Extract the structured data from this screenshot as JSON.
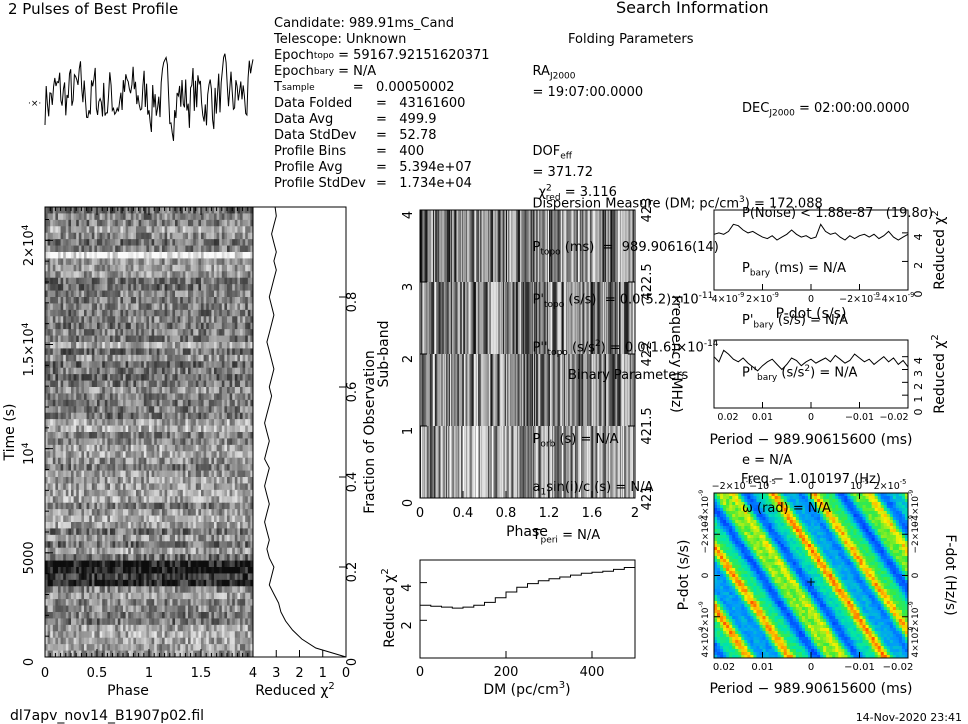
{
  "profile_title": "2 Pulses of Best Profile",
  "search_title": "Search Information",
  "folding_title": "Folding Parameters",
  "binary_title": "Binary Parameters",
  "candidate_info": [
    {
      "key": "Candidate:",
      "val": "989.91ms_Cand"
    },
    {
      "key": "Telescope:",
      "val": "Unknown"
    },
    {
      "key": "Epoch",
      "sub": "topo",
      "val": "= 59167.92151620371"
    },
    {
      "key": "Epoch",
      "sub": "bary",
      "val": "= N/A"
    },
    {
      "key": "T",
      "sub": "sample",
      "val": "=   0.00050002"
    },
    {
      "key": "Data Folded",
      "val": "=   43161600"
    },
    {
      "key": "Data Avg",
      "val": "=   499.9"
    },
    {
      "key": "Data StdDev",
      "val": "=   52.78"
    },
    {
      "key": "Profile Bins",
      "val": "=   400"
    },
    {
      "key": "Profile Avg",
      "val": "=   5.394e+07"
    },
    {
      "key": "Profile StdDev",
      "val": "=   1.734e+04"
    }
  ],
  "search_info": {
    "ra_label": "RA",
    "ra_sub": "J2000",
    "ra_val": "= 19:07:00.0000",
    "dec_label": "DEC",
    "dec_sub": "J2000",
    "dec_val": "= 02:00:00.0000",
    "dof": "DOF",
    "dof_sub": "eff",
    "dof_val": "= 371.72",
    "chi": "χ",
    "chi_sup": "2",
    "chi_sub": "red",
    "chi_val": "= 3.116",
    "pnoise": "P(Noise) < 1.88e-87   (19.8σ)",
    "dm": "Dispersion Measure (DM; pc/cm",
    "dm_sup": "3",
    "dm_val": ") = 172.088",
    "ptopo": "P",
    "ptopo_sub": "topo",
    "ptopo_val": "(ms)  =  989.90616(14)",
    "pbary": "P",
    "pbary_sub": "bary",
    "pbary_val": "(ms) = N/A",
    "pdtopo": "P'",
    "pdtopo_sub": "topo",
    "pdtopo_val": "(s/s)  = 0.0(5.2)×10",
    "pdtopo_exp": "-11",
    "pdbary": "P'",
    "pdbary_sub": "bary",
    "pdbary_val": "(s/s) = N/A",
    "pddtopo": "P''",
    "pddtopo_sub": "topo",
    "pddtopo_val": "(s/s",
    "pddtopo_sup": "2",
    "pddtopo_val2": ") = 0.0(1.6)×10",
    "pddtopo_exp": "-14",
    "pddbary": "P''",
    "pddbary_sub": "bary",
    "pddbary_val": "(s/s",
    "pddbary_sup": "2",
    "pddbary_val2": ") = N/A",
    "porb": "P",
    "porb_sub": "orb",
    "porb_val": "(s) = N/A",
    "e_val": "e = N/A",
    "asini": "a",
    "asini_sub": "1",
    "asini_val": "sin(i)/c (s) = N/A",
    "omega_val": "ω (rad) = N/A",
    "tperi": "T",
    "tperi_sub": "peri",
    "tperi_val": "= N/A"
  },
  "footer": {
    "filename": "dl7apv_nov14_B1907p02.fil",
    "timestamp": "14-Nov-2020 23:41"
  },
  "panel_labels": {
    "time_phase_x": "Phase",
    "time_y": "Time (s)",
    "chi_x": "Reduced χ",
    "chi_x_sup": "2",
    "frac_obs": "Fraction of Observation",
    "subband_x": "Phase",
    "subband_y": "Sub-band",
    "freq_y": "Frequency (MHz)",
    "dm_x": "DM (pc/cm",
    "dm_x_sup": "3",
    "dm_x_end": ")",
    "dm_y": "Reduced χ",
    "dm_y_sup": "2",
    "pdot_x": "P-dot (s/s)",
    "pdot_y": "Reduced χ",
    "pdot_y_sup": "2",
    "period_x": "Period − 989.90615600 (ms)",
    "period_y": "Reduced χ",
    "period_y_sup": "2",
    "map_top": "Freq − 1.010197 (Hz)",
    "map_bottom": "Period − 989.90615600 (ms)",
    "map_left": "P-dot (s/s)",
    "map_right": "F-dot (Hz/s)"
  },
  "chart_data": [
    {
      "id": "profile",
      "type": "line",
      "title": "2 Pulses of Best Profile",
      "note": "noise-like pulse profile, two pulses over phase 0–2, no axes labels shown"
    },
    {
      "id": "time_phase",
      "type": "heatmap",
      "colormap": "grayscale",
      "xlabel": "Phase",
      "ylabel": "Time (s)",
      "x_ticks": [
        "0",
        "0.5",
        "1",
        "1.5"
      ],
      "y_ticks": [
        "0",
        "5000",
        "10^4",
        "1.5×10^4",
        "2×10^4"
      ],
      "xlim": [
        0,
        2
      ],
      "ylim": [
        0,
        21600
      ],
      "dark_bands_time_s": [
        3900,
        4200
      ]
    },
    {
      "id": "chi_vs_time",
      "type": "line",
      "xlabel": "Reduced χ2",
      "ylabel": "Fraction of Observation",
      "x_ticks": [
        "4",
        "3",
        "2",
        "1",
        "0"
      ],
      "xlim": [
        4,
        0
      ],
      "y_ticks": [
        "0",
        "0.2",
        "0.4",
        "0.6",
        "0.8"
      ],
      "ylim": [
        0,
        1
      ],
      "y": [
        0.0,
        0.02,
        0.04,
        0.06,
        0.08,
        0.1,
        0.12,
        0.14,
        0.16,
        0.18,
        0.2,
        0.22,
        0.24,
        0.26,
        0.28,
        0.3,
        0.32,
        0.34,
        0.36,
        0.38,
        0.4,
        0.42,
        0.44,
        0.46,
        0.48,
        0.5,
        0.52,
        0.54,
        0.56,
        0.58,
        0.6,
        0.62,
        0.64,
        0.66,
        0.68,
        0.7,
        0.72,
        0.74,
        0.76,
        0.78,
        0.8,
        0.82,
        0.84,
        0.86,
        0.88,
        0.9,
        0.92,
        0.94,
        0.96,
        0.98,
        1.0
      ],
      "x": [
        0.0,
        1.3,
        1.9,
        2.3,
        2.6,
        2.8,
        2.9,
        3.1,
        3.3,
        3.2,
        3.1,
        3.3,
        3.4,
        3.3,
        3.4,
        3.5,
        3.4,
        3.3,
        3.4,
        3.5,
        3.4,
        3.3,
        3.5,
        3.4,
        3.3,
        3.4,
        3.5,
        3.4,
        3.3,
        3.2,
        3.3,
        3.2,
        3.1,
        3.2,
        3.3,
        3.4,
        3.3,
        3.2,
        3.1,
        3.2,
        3.3,
        3.2,
        3.1,
        3.0,
        3.1,
        3.0,
        3.1,
        3.2,
        3.1,
        3.0,
        3.05
      ]
    },
    {
      "id": "subband",
      "type": "heatmap",
      "colormap": "grayscale",
      "xlabel": "Phase",
      "ylabel": "Sub-band",
      "x_ticks": [
        "0",
        "0.4",
        "0.8",
        "1.2",
        "1.6",
        "2"
      ],
      "xlim": [
        0,
        2
      ],
      "y_ticks": [
        "0",
        "1",
        "2",
        "3",
        "4"
      ],
      "ylim": [
        0,
        4
      ],
      "freq_ticks": [
        "421",
        "421.5",
        "422",
        "422.5",
        "423"
      ],
      "freq_lim": [
        421,
        423
      ],
      "freq_label": "Frequency (MHz)"
    },
    {
      "id": "dm_chi",
      "type": "line",
      "xlabel": "DM (pc/cm3)",
      "ylabel": "Reduced χ2",
      "x_ticks": [
        "0",
        "200",
        "400"
      ],
      "xlim": [
        0,
        500
      ],
      "y_ticks": [
        "2",
        "4"
      ],
      "ylim": [
        0,
        5.2
      ],
      "x": [
        0,
        25,
        50,
        75,
        100,
        125,
        150,
        175,
        200,
        225,
        250,
        275,
        300,
        325,
        350,
        375,
        400,
        425,
        450,
        475,
        500
      ],
      "y": [
        2.8,
        2.75,
        2.7,
        2.65,
        2.7,
        2.8,
        2.95,
        3.2,
        3.5,
        3.75,
        3.95,
        4.1,
        4.2,
        4.3,
        4.4,
        4.5,
        4.55,
        4.6,
        4.7,
        4.8,
        4.9
      ]
    },
    {
      "id": "pdot_chi",
      "type": "line",
      "xlabel": "P-dot (s/s)",
      "ylabel": "Reduced χ2",
      "x_ticks": [
        "4×10^-9",
        "2×10^-9",
        "0",
        "−2×10^-9",
        "−4×10^-9"
      ],
      "xlim": [
        4e-09,
        -4e-09
      ],
      "y_ticks": [
        "0",
        "2",
        "4"
      ],
      "ylim": [
        0,
        5.6
      ],
      "y": [
        3.9,
        4.0,
        3.9,
        4.1,
        4.6,
        4.5,
        4.2,
        4.0,
        4.1,
        3.9,
        3.7,
        3.6,
        3.8,
        3.5,
        3.7,
        3.9,
        4.2,
        3.9,
        3.7,
        3.8,
        3.6,
        3.7,
        4.6,
        4.1,
        3.9,
        4.0,
        3.7,
        3.5,
        3.8,
        3.6,
        3.8,
        3.9,
        3.7,
        3.9,
        3.6,
        3.8,
        4.1,
        3.7,
        3.5,
        3.7,
        3.9
      ]
    },
    {
      "id": "period_chi",
      "type": "line",
      "xlabel": "Period − 989.90615600 (ms)",
      "ylabel": "Reduced χ2",
      "x_ticks": [
        "0.02",
        "0.01",
        "0",
        "−0.01",
        "−0.02"
      ],
      "xlim": [
        0.024,
        -0.024
      ],
      "y_ticks": [
        "0",
        "1",
        "2",
        "3",
        "4"
      ],
      "ylim": [
        0,
        5.3
      ],
      "y": [
        4.0,
        3.6,
        4.5,
        4.2,
        3.8,
        3.6,
        3.9,
        3.5,
        3.2,
        2.9,
        3.3,
        3.6,
        3.8,
        3.4,
        3.0,
        3.4,
        3.9,
        3.7,
        3.3,
        3.6,
        3.8,
        3.5,
        3.7,
        3.9,
        3.6,
        4.1,
        3.8,
        3.5,
        3.7,
        4.2,
        3.9,
        3.6,
        3.8,
        3.4,
        3.7,
        4.0,
        3.6,
        3.9,
        3.4,
        3.7,
        3.2
      ]
    },
    {
      "id": "ppdot_map",
      "type": "heatmap",
      "colormap": "rainbow",
      "top_label": "Freq − 1.010197 (Hz)",
      "bottom_label": "Period − 989.90615600 (ms)",
      "left_label": "P-dot (s/s)",
      "right_label": "F-dot (Hz/s)",
      "top_ticks": [
        "−2×10^-5",
        "−10^-5",
        "0",
        "10^-5",
        "2×10^-5"
      ],
      "bottom_ticks": [
        "0.02",
        "0.01",
        "0",
        "−0.01",
        "−0.02"
      ],
      "left_ticks": [
        "4×10^-9",
        "2×10^-9",
        "0",
        "−2×10^-9",
        "−4×10^-9"
      ],
      "right_ticks": [
        "4×10^-9",
        "2×10^-9",
        "0",
        "−2×10^-9",
        "−4×10^-9"
      ],
      "colors": {
        "low": "#0026ff",
        "mid": "#00e5a0",
        "high": "#ff2a00"
      }
    }
  ]
}
